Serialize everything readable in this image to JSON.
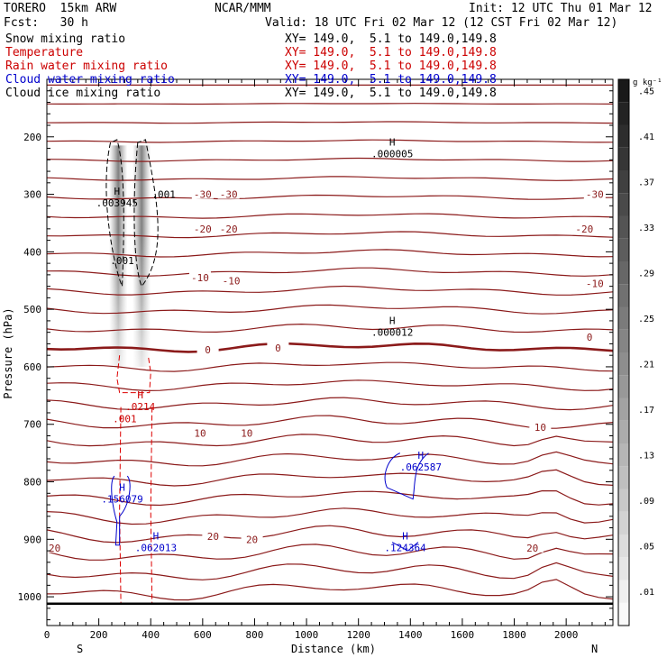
{
  "header": {
    "model": "TORERO  15km ARW",
    "org": "NCAR/MMM",
    "init": "Init: 12 UTC Thu 01 Mar 12",
    "fcst": "Fcst:   30 h",
    "valid": "Valid: 18 UTC Fri 02 Mar 12 (12 CST Fri 02 Mar 12)"
  },
  "fields": [
    {
      "name": "Snow mixing ratio",
      "xy": "XY= 149.0,  5.1 to 149.0,149.8",
      "color": "#000000"
    },
    {
      "name": "Temperature",
      "xy": "XY= 149.0,  5.1 to 149.0,149.8",
      "color": "#cc0000"
    },
    {
      "name": "Rain water mixing ratio",
      "xy": "XY= 149.0,  5.1 to 149.0,149.8",
      "color": "#cc0000"
    },
    {
      "name": "Cloud water mixing ratio",
      "xy": "XY= 149.0,  5.1 to 149.0,149.8",
      "color": "#0000cc"
    },
    {
      "name": "Cloud ice mixing ratio",
      "xy": "XY= 149.0,  5.1 to 149.0,149.8",
      "color": "#000000"
    }
  ],
  "chart_data": {
    "type": "cross-section",
    "xlabel": "Distance (km)",
    "ylabel": "Pressure (hPa)",
    "xlim": [
      0,
      2180
    ],
    "ylim": [
      1050,
      100
    ],
    "x_ticks": [
      0,
      200,
      400,
      600,
      800,
      1000,
      1200,
      1400,
      1600,
      1800,
      2000
    ],
    "y_ticks": [
      200,
      300,
      400,
      500,
      600,
      700,
      800,
      900,
      1000
    ],
    "left_end": "S",
    "right_end": "N",
    "colorbar": {
      "unit": "g kg⁻¹",
      "labels": [
        ".01",
        ".05",
        ".09",
        ".13",
        ".17",
        ".21",
        ".25",
        ".29",
        ".33",
        ".37",
        ".41",
        ".45"
      ]
    },
    "temperature_labels": [
      {
        "text": "-30",
        "x": 600,
        "p": 300
      },
      {
        "text": "-30",
        "x": 700,
        "p": 300
      },
      {
        "text": "-30",
        "x": 2110,
        "p": 300
      },
      {
        "text": "-20",
        "x": 600,
        "p": 360
      },
      {
        "text": "-20",
        "x": 700,
        "p": 360
      },
      {
        "text": "-20",
        "x": 2070,
        "p": 360
      },
      {
        "text": "-10",
        "x": 590,
        "p": 445
      },
      {
        "text": "-10",
        "x": 710,
        "p": 450
      },
      {
        "text": "-10",
        "x": 2110,
        "p": 455
      },
      {
        "text": "0",
        "x": 620,
        "p": 570
      },
      {
        "text": "0",
        "x": 890,
        "p": 567
      },
      {
        "text": "0",
        "x": 2090,
        "p": 548
      },
      {
        "text": "10",
        "x": 590,
        "p": 715
      },
      {
        "text": "10",
        "x": 770,
        "p": 715
      },
      {
        "text": "10",
        "x": 1900,
        "p": 705
      },
      {
        "text": "20",
        "x": 30,
        "p": 915
      },
      {
        "text": "20",
        "x": 640,
        "p": 895
      },
      {
        "text": "20",
        "x": 790,
        "p": 900
      },
      {
        "text": "20",
        "x": 1870,
        "p": 915
      }
    ],
    "maxima": [
      {
        "label": "H",
        "value": ".003945",
        "x": 270,
        "p": 305,
        "color": "#000000"
      },
      {
        "label": "H",
        "value": ".000005",
        "x": 1330,
        "p": 220,
        "color": "#000000"
      },
      {
        "label": "H",
        "value": ".000012",
        "x": 1330,
        "p": 530,
        "color": "#000000"
      },
      {
        "label": "H",
        "value": ".0214",
        "x": 360,
        "p": 660,
        "color": "#cc0000"
      },
      {
        "label": "H",
        "value": ".062587",
        "x": 1440,
        "p": 765,
        "color": "#0000cc"
      },
      {
        "label": "H",
        "value": ".156079",
        "x": 290,
        "p": 820,
        "color": "#0000cc"
      },
      {
        "label": "H",
        "value": ".062013",
        "x": 420,
        "p": 905,
        "color": "#0000cc"
      },
      {
        "label": "H",
        "value": ".124364",
        "x": 1380,
        "p": 905,
        "color": "#0000cc"
      }
    ],
    "contour_labels": [
      {
        "text": ".001",
        "x": 450,
        "p": 300,
        "color": "#000000"
      },
      {
        "text": ".001",
        "x": 290,
        "p": 415,
        "color": "#000000"
      },
      {
        "text": ".001",
        "x": 300,
        "p": 690,
        "color": "#cc0000"
      }
    ]
  }
}
